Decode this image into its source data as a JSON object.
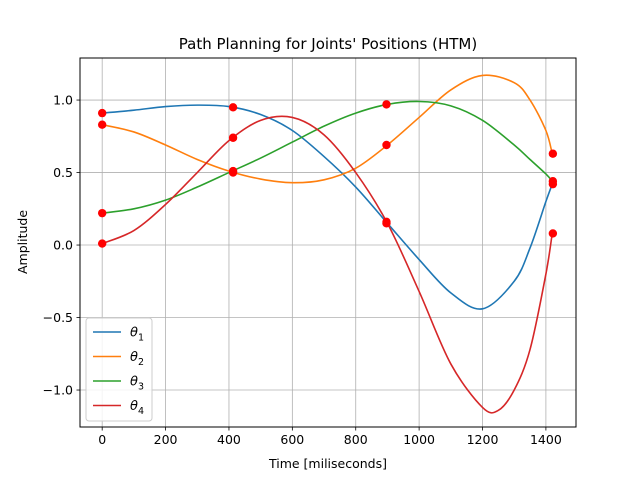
{
  "chart_data": {
    "type": "line",
    "title": "Path Planning for Joints' Positions (HTM)",
    "xlabel": "Time [miliseconds]",
    "ylabel": "Amplitude",
    "xlim": [
      -70,
      1495
    ],
    "ylim": [
      -1.255,
      1.29
    ],
    "xticks": [
      0,
      200,
      400,
      600,
      800,
      1000,
      1200,
      1400
    ],
    "yticks": [
      -1.0,
      -0.5,
      0.0,
      0.5,
      1.0
    ],
    "xtick_labels": [
      "0",
      "200",
      "400",
      "600",
      "800",
      "1000",
      "1200",
      "1400"
    ],
    "ytick_labels": [
      "−1.0",
      "−0.5",
      "0.0",
      "0.5",
      "1.0"
    ],
    "grid": true,
    "legend_position": "lower-left",
    "series": [
      {
        "name": "θ",
        "subscript": "1",
        "color": "#1f77b4",
        "x": [
          0,
          100,
          200,
          300,
          400,
          500,
          600,
          700,
          800,
          900,
          1000,
          1100,
          1200,
          1300,
          1350,
          1400,
          1420
        ],
        "y": [
          0.91,
          0.93,
          0.955,
          0.965,
          0.955,
          0.9,
          0.79,
          0.61,
          0.4,
          0.15,
          -0.1,
          -0.33,
          -0.44,
          -0.25,
          -0.02,
          0.3,
          0.42
        ],
        "knots_x": [
          0,
          413,
          897,
          1422
        ],
        "knots_y": [
          0.91,
          0.95,
          0.15,
          0.42
        ]
      },
      {
        "name": "θ",
        "subscript": "2",
        "color": "#ff7f0e",
        "x": [
          0,
          100,
          200,
          300,
          400,
          500,
          600,
          700,
          800,
          900,
          1000,
          1100,
          1200,
          1300,
          1350,
          1400,
          1420
        ],
        "y": [
          0.83,
          0.78,
          0.69,
          0.59,
          0.51,
          0.455,
          0.43,
          0.45,
          0.53,
          0.69,
          0.88,
          1.07,
          1.17,
          1.12,
          1.0,
          0.79,
          0.63
        ],
        "knots_x": [
          0,
          413,
          897,
          1422
        ],
        "knots_y": [
          0.83,
          0.51,
          0.69,
          0.63
        ]
      },
      {
        "name": "θ",
        "subscript": "3",
        "color": "#2ca02c",
        "x": [
          0,
          100,
          200,
          300,
          400,
          500,
          600,
          700,
          800,
          900,
          1000,
          1100,
          1200,
          1300,
          1350,
          1400,
          1420
        ],
        "y": [
          0.22,
          0.25,
          0.31,
          0.4,
          0.5,
          0.6,
          0.71,
          0.82,
          0.91,
          0.97,
          0.99,
          0.96,
          0.86,
          0.69,
          0.59,
          0.49,
          0.44
        ],
        "knots_x": [
          0,
          413,
          897,
          1422
        ],
        "knots_y": [
          0.22,
          0.5,
          0.97,
          0.44
        ]
      },
      {
        "name": "θ",
        "subscript": "4",
        "color": "#d62728",
        "x": [
          0,
          100,
          200,
          300,
          400,
          500,
          600,
          700,
          800,
          900,
          1000,
          1100,
          1200,
          1250,
          1300,
          1350,
          1400,
          1420
        ],
        "y": [
          0.01,
          0.1,
          0.28,
          0.5,
          0.72,
          0.86,
          0.88,
          0.76,
          0.5,
          0.15,
          -0.32,
          -0.82,
          -1.12,
          -1.14,
          -1.0,
          -0.72,
          -0.2,
          0.08
        ],
        "knots_x": [
          0,
          413,
          897,
          1422
        ],
        "knots_y": [
          0.01,
          0.74,
          0.16,
          0.08
        ]
      }
    ]
  }
}
